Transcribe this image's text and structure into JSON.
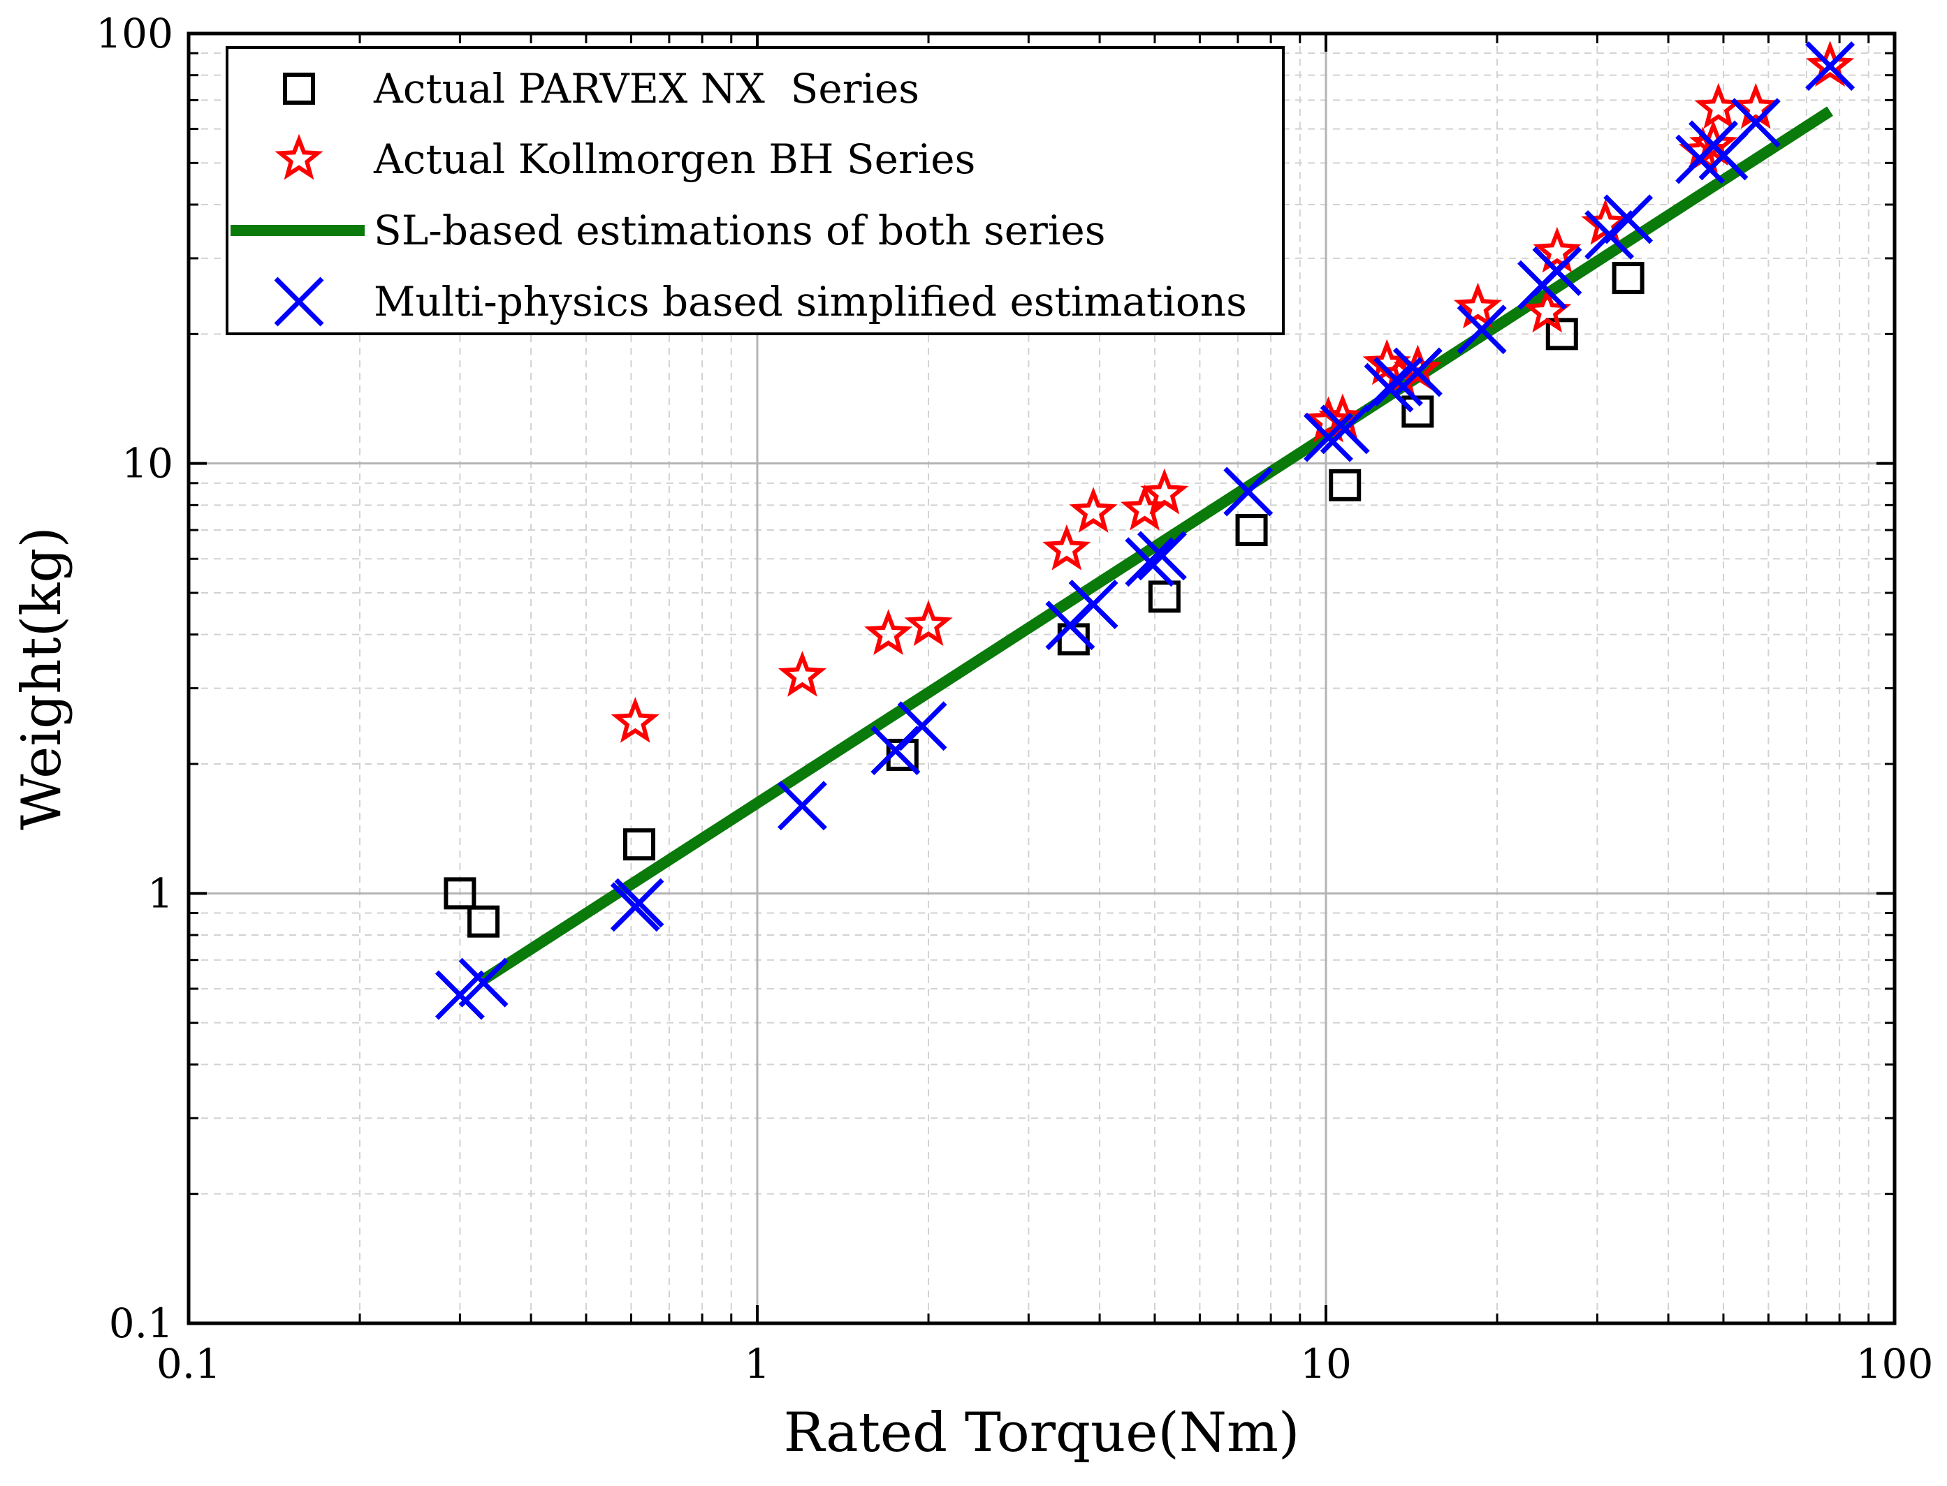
{
  "chart_data": {
    "type": "scatter",
    "title": "",
    "xlabel": "Rated Torque(Nm)",
    "ylabel": "Weight(kg)",
    "xscale": "log",
    "yscale": "log",
    "xlim": [
      0.1,
      100
    ],
    "ylim": [
      0.1,
      100
    ],
    "grid": true,
    "legend_position": "top-left",
    "xticks": [
      {
        "value": 0.1,
        "label": "0.1"
      },
      {
        "value": 1,
        "label": "1"
      },
      {
        "value": 10,
        "label": "10"
      },
      {
        "value": 100,
        "label": "100"
      }
    ],
    "yticks": [
      {
        "value": 0.1,
        "label": "0.1"
      },
      {
        "value": 1,
        "label": "1"
      },
      {
        "value": 10,
        "label": "10"
      },
      {
        "value": 100,
        "label": "100"
      }
    ],
    "series": [
      {
        "name": "Actual PARVEX NX  Series",
        "marker": "square",
        "color": "#000000",
        "x": [
          0.3,
          0.33,
          0.62,
          1.8,
          3.6,
          5.2,
          7.4,
          10.8,
          14.5,
          26,
          34
        ],
        "y": [
          1.0,
          0.86,
          1.3,
          2.1,
          3.9,
          4.9,
          7.0,
          8.9,
          13.2,
          20,
          27
        ]
      },
      {
        "name": "Actual Kollmorgen BH Series",
        "marker": "star",
        "color": "#ff0000",
        "x": [
          0.61,
          1.2,
          1.7,
          2.0,
          3.5,
          3.9,
          4.8,
          5.2,
          10.1,
          10.7,
          12.8,
          13.5,
          14.5,
          18.5,
          24.5,
          25.5,
          31,
          46,
          48,
          49,
          57,
          77
        ],
        "y": [
          2.5,
          3.2,
          4.0,
          4.2,
          6.3,
          7.7,
          7.8,
          8.5,
          12.5,
          12.7,
          17,
          16,
          16.5,
          23,
          22.5,
          31,
          36,
          53,
          55,
          67,
          67,
          84
        ]
      },
      {
        "name": "SL-based estimations of both series",
        "marker": "line",
        "color": "#0a7a0a",
        "x": [
          0.33,
          77
        ],
        "y": [
          0.63,
          66
        ]
      },
      {
        "name": "Multi-physics based simplified estimations",
        "marker": "x",
        "color": "#0000ff",
        "x": [
          0.3,
          0.33,
          0.61,
          0.62,
          1.2,
          1.75,
          1.95,
          3.55,
          3.9,
          4.9,
          5.15,
          7.3,
          10.1,
          10.8,
          12.9,
          13.4,
          14.5,
          18.8,
          24,
          25.5,
          31.5,
          34,
          45.5,
          48,
          50,
          57,
          77
        ],
        "y": [
          0.58,
          0.62,
          0.93,
          0.95,
          1.6,
          2.15,
          2.45,
          4.2,
          4.7,
          5.9,
          6.1,
          8.6,
          11.5,
          12.0,
          15.0,
          15.5,
          16.3,
          20.5,
          26,
          28,
          34,
          37,
          51,
          55,
          52,
          62,
          84
        ]
      }
    ]
  },
  "colors": {
    "grid": "#b4b4b4",
    "minor_grid": "#d2d2d2",
    "axis": "#000000"
  }
}
